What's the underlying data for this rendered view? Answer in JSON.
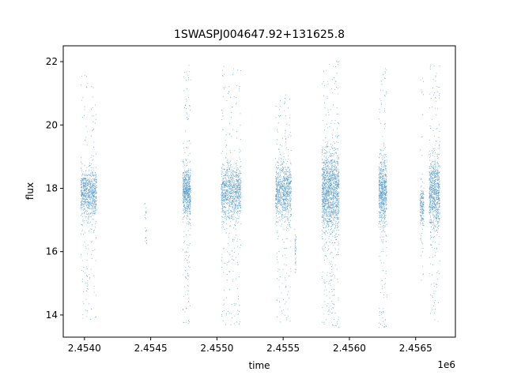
{
  "chart_data": {
    "type": "scatter",
    "title": "1SWASPJ004647.92+131625.8",
    "xlabel": "time",
    "ylabel": "flux",
    "x_offset_label": "1e6",
    "xlim": [
      2453840,
      2456800
    ],
    "ylim": [
      13.3,
      22.5
    ],
    "x_ticks": [
      2454000,
      2454500,
      2455000,
      2455500,
      2456000,
      2456500
    ],
    "x_tick_labels": [
      "2.4540",
      "2.4545",
      "2.4550",
      "2.4555",
      "2.4560",
      "2.4565"
    ],
    "y_ticks": [
      14,
      16,
      18,
      20,
      22
    ],
    "y_tick_labels": [
      "14",
      "16",
      "18",
      "20",
      "22"
    ],
    "grid": false,
    "marker_color": "#1f77b4",
    "seasons": [
      {
        "x_start": 2453970,
        "x_end": 2454090,
        "center": 17.85,
        "spread": 0.4,
        "outlier_low": 13.8,
        "outlier_high": 21.6,
        "density": 900
      },
      {
        "x_start": 2454450,
        "x_end": 2454470,
        "center": 17.2,
        "spread": 0.5,
        "outlier_low": 16.2,
        "outlier_high": 17.8,
        "density": 25
      },
      {
        "x_start": 2454740,
        "x_end": 2454800,
        "center": 17.9,
        "spread": 0.4,
        "outlier_low": 13.7,
        "outlier_high": 21.9,
        "density": 700
      },
      {
        "x_start": 2455030,
        "x_end": 2455180,
        "center": 17.9,
        "spread": 0.45,
        "outlier_low": 13.7,
        "outlier_high": 22.1,
        "density": 1100
      },
      {
        "x_start": 2455440,
        "x_end": 2455560,
        "center": 17.9,
        "spread": 0.45,
        "outlier_low": 13.7,
        "outlier_high": 21.0,
        "density": 950
      },
      {
        "x_start": 2455585,
        "x_end": 2455595,
        "center": 16.0,
        "spread": 0.4,
        "outlier_low": 15.3,
        "outlier_high": 16.8,
        "density": 40
      },
      {
        "x_start": 2455790,
        "x_end": 2455920,
        "center": 17.9,
        "spread": 0.65,
        "outlier_low": 13.6,
        "outlier_high": 22.1,
        "density": 1600
      },
      {
        "x_start": 2456220,
        "x_end": 2456280,
        "center": 17.9,
        "spread": 0.5,
        "outlier_low": 13.6,
        "outlier_high": 21.8,
        "density": 750
      },
      {
        "x_start": 2456530,
        "x_end": 2456560,
        "center": 17.5,
        "spread": 0.3,
        "outlier_low": 14.8,
        "outlier_high": 21.5,
        "density": 200
      },
      {
        "x_start": 2456600,
        "x_end": 2456680,
        "center": 17.9,
        "spread": 0.55,
        "outlier_low": 13.8,
        "outlier_high": 22.1,
        "density": 900
      }
    ]
  }
}
